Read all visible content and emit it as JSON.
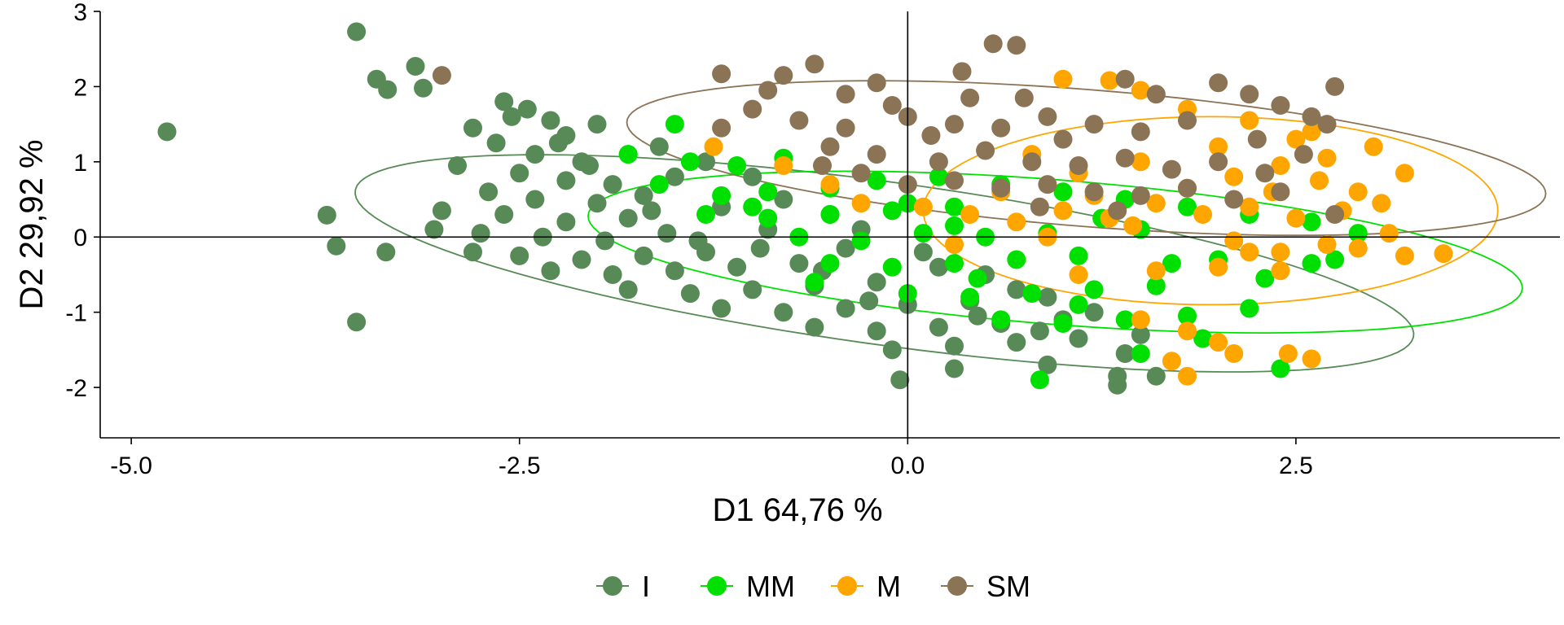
{
  "chart_data": {
    "type": "scatter",
    "xlabel": "D1 64,76 %",
    "ylabel": "D2 29,92 %",
    "xlim": [
      -5.2,
      4.2
    ],
    "ylim": [
      -2.67,
      3.0
    ],
    "x_ticks": [
      -5.0,
      -2.5,
      0.0,
      2.5
    ],
    "x_tick_labels": [
      "-5.0",
      "-2.5",
      "0.0",
      "2.5"
    ],
    "y_ticks": [
      -2,
      -1,
      0,
      1,
      2,
      3
    ],
    "y_tick_labels": [
      "-2",
      "-1",
      "0",
      "1",
      "2",
      "3"
    ],
    "reference_lines": {
      "x": 0,
      "y": 0
    },
    "grid": false,
    "legend_position": "bottom",
    "series": [
      {
        "name": "I",
        "color": "#578A57",
        "ellipse": {
          "cx": -0.15,
          "cy": -0.35,
          "rx": 3.55,
          "ry": 1.05,
          "angle_deg": -17
        },
        "points": [
          [
            -4.77,
            1.4
          ],
          [
            -3.55,
            2.73
          ],
          [
            -3.42,
            2.1
          ],
          [
            -3.35,
            1.96
          ],
          [
            -3.17,
            2.27
          ],
          [
            -3.12,
            1.98
          ],
          [
            -3.74,
            0.29
          ],
          [
            -3.68,
            -0.12
          ],
          [
            -3.36,
            -0.2
          ],
          [
            -3.55,
            -1.13
          ],
          [
            -2.6,
            1.8
          ],
          [
            -2.45,
            1.7
          ],
          [
            -2.3,
            1.55
          ],
          [
            -2.8,
            1.45
          ],
          [
            -2.2,
            1.35
          ],
          [
            -2.65,
            1.25
          ],
          [
            -2.4,
            1.1
          ],
          [
            -2.1,
            1.0
          ],
          [
            -2.9,
            0.95
          ],
          [
            -2.5,
            0.85
          ],
          [
            -2.2,
            0.75
          ],
          [
            -1.9,
            0.7
          ],
          [
            -2.7,
            0.6
          ],
          [
            -2.4,
            0.5
          ],
          [
            -2.0,
            0.45
          ],
          [
            -1.7,
            0.55
          ],
          [
            -3.0,
            0.35
          ],
          [
            -2.6,
            0.3
          ],
          [
            -2.2,
            0.2
          ],
          [
            -1.8,
            0.25
          ],
          [
            -3.05,
            0.1
          ],
          [
            -2.75,
            0.05
          ],
          [
            -2.35,
            0.0
          ],
          [
            -1.95,
            -0.05
          ],
          [
            -1.55,
            0.05
          ],
          [
            -2.8,
            -0.2
          ],
          [
            -2.5,
            -0.25
          ],
          [
            -2.1,
            -0.3
          ],
          [
            -1.7,
            -0.25
          ],
          [
            -1.3,
            -0.2
          ],
          [
            -2.3,
            -0.45
          ],
          [
            -1.9,
            -0.5
          ],
          [
            -1.5,
            -0.45
          ],
          [
            -1.1,
            -0.4
          ],
          [
            -0.7,
            -0.35
          ],
          [
            -1.8,
            -0.7
          ],
          [
            -1.4,
            -0.75
          ],
          [
            -1.0,
            -0.7
          ],
          [
            -0.6,
            -0.65
          ],
          [
            -0.2,
            -0.6
          ],
          [
            -1.2,
            -0.95
          ],
          [
            -0.8,
            -1.0
          ],
          [
            -0.4,
            -0.95
          ],
          [
            0.0,
            -0.9
          ],
          [
            0.4,
            -0.85
          ],
          [
            -0.6,
            -1.2
          ],
          [
            -0.2,
            -1.25
          ],
          [
            0.2,
            -1.2
          ],
          [
            0.6,
            -1.15
          ],
          [
            1.0,
            -1.1
          ],
          [
            -0.1,
            -1.5
          ],
          [
            0.3,
            -1.45
          ],
          [
            0.7,
            -1.4
          ],
          [
            1.1,
            -1.35
          ],
          [
            1.5,
            -1.3
          ],
          [
            -0.05,
            -1.9
          ],
          [
            0.3,
            -1.75
          ],
          [
            0.9,
            -1.7
          ],
          [
            1.35,
            -1.85
          ],
          [
            1.6,
            -1.85
          ],
          [
            1.35,
            -1.97
          ],
          [
            -1.6,
            1.2
          ],
          [
            -1.3,
            1.0
          ],
          [
            -1.0,
            0.8
          ],
          [
            -0.8,
            0.5
          ],
          [
            -0.5,
            0.3
          ],
          [
            -0.3,
            0.1
          ],
          [
            0.1,
            -0.2
          ],
          [
            0.5,
            -0.5
          ],
          [
            0.9,
            -0.8
          ],
          [
            -2.0,
            1.5
          ],
          [
            -1.8,
            1.1
          ],
          [
            -1.5,
            0.8
          ],
          [
            -1.2,
            0.4
          ],
          [
            -0.9,
            0.1
          ],
          [
            -0.4,
            -0.15
          ],
          [
            0.2,
            -0.4
          ],
          [
            0.7,
            -0.7
          ],
          [
            1.2,
            -1.0
          ],
          [
            1.4,
            -1.55
          ],
          [
            -2.55,
            1.6
          ],
          [
            -2.25,
            1.25
          ],
          [
            -2.05,
            0.95
          ],
          [
            -1.65,
            0.35
          ],
          [
            -1.35,
            -0.05
          ],
          [
            -0.95,
            -0.15
          ],
          [
            -0.55,
            -0.45
          ],
          [
            -0.25,
            -0.85
          ],
          [
            0.45,
            -1.05
          ],
          [
            0.85,
            -1.25
          ]
        ]
      },
      {
        "name": "MM",
        "color": "#00E000",
        "ellipse": {
          "cx": 0.95,
          "cy": -0.2,
          "rx": 3.05,
          "ry": 0.95,
          "angle_deg": -10
        },
        "points": [
          [
            -1.5,
            1.5
          ],
          [
            -1.8,
            1.1
          ],
          [
            -1.4,
            1.0
          ],
          [
            -1.1,
            0.95
          ],
          [
            -0.8,
            1.05
          ],
          [
            -1.6,
            0.7
          ],
          [
            -1.2,
            0.55
          ],
          [
            -0.9,
            0.6
          ],
          [
            -0.5,
            0.65
          ],
          [
            -0.2,
            0.75
          ],
          [
            -1.3,
            0.3
          ],
          [
            -0.9,
            0.25
          ],
          [
            -0.5,
            0.3
          ],
          [
            -0.1,
            0.35
          ],
          [
            0.3,
            0.4
          ],
          [
            -0.7,
            0.0
          ],
          [
            -0.3,
            -0.05
          ],
          [
            0.1,
            0.05
          ],
          [
            0.5,
            0.0
          ],
          [
            0.9,
            0.05
          ],
          [
            -0.5,
            -0.35
          ],
          [
            -0.1,
            -0.4
          ],
          [
            0.3,
            -0.35
          ],
          [
            0.7,
            -0.3
          ],
          [
            1.1,
            -0.25
          ],
          [
            0.0,
            -0.75
          ],
          [
            0.4,
            -0.8
          ],
          [
            0.8,
            -0.75
          ],
          [
            1.2,
            -0.7
          ],
          [
            1.6,
            -0.65
          ],
          [
            0.6,
            -1.1
          ],
          [
            1.0,
            -1.15
          ],
          [
            1.4,
            -1.1
          ],
          [
            1.8,
            -1.05
          ],
          [
            2.2,
            -0.95
          ],
          [
            0.85,
            -1.9
          ],
          [
            1.5,
            -1.55
          ],
          [
            2.4,
            -1.75
          ],
          [
            1.9,
            -1.35
          ],
          [
            2.6,
            -0.35
          ],
          [
            0.2,
            0.8
          ],
          [
            0.6,
            0.7
          ],
          [
            1.0,
            0.6
          ],
          [
            1.4,
            0.5
          ],
          [
            1.8,
            0.4
          ],
          [
            2.2,
            0.3
          ],
          [
            2.6,
            0.2
          ],
          [
            2.9,
            0.05
          ],
          [
            2.0,
            -0.3
          ],
          [
            1.5,
            0.1
          ],
          [
            -1.0,
            0.4
          ],
          [
            -0.6,
            -0.6
          ],
          [
            0.0,
            0.45
          ],
          [
            0.45,
            -0.55
          ],
          [
            1.25,
            0.25
          ],
          [
            1.7,
            -0.35
          ],
          [
            2.3,
            -0.55
          ],
          [
            2.75,
            -0.3
          ],
          [
            1.1,
            -0.9
          ],
          [
            0.3,
            0.15
          ]
        ]
      },
      {
        "name": "M",
        "color": "#FFA500",
        "ellipse": {
          "cx": 1.95,
          "cy": 0.35,
          "rx": 1.85,
          "ry": 1.25,
          "angle_deg": 0
        },
        "points": [
          [
            -1.25,
            1.2
          ],
          [
            -0.8,
            0.95
          ],
          [
            -0.5,
            0.7
          ],
          [
            -0.3,
            0.45
          ],
          [
            0.1,
            0.4
          ],
          [
            0.4,
            0.3
          ],
          [
            0.7,
            0.2
          ],
          [
            1.0,
            0.35
          ],
          [
            1.3,
            0.25
          ],
          [
            1.6,
            0.45
          ],
          [
            1.9,
            0.3
          ],
          [
            2.2,
            0.4
          ],
          [
            2.5,
            0.25
          ],
          [
            2.8,
            0.35
          ],
          [
            3.1,
            0.05
          ],
          [
            3.45,
            -0.22
          ],
          [
            3.2,
            -0.25
          ],
          [
            2.7,
            -0.1
          ],
          [
            2.4,
            -0.2
          ],
          [
            2.1,
            -0.05
          ],
          [
            1.8,
            0.65
          ],
          [
            2.1,
            0.8
          ],
          [
            2.4,
            0.95
          ],
          [
            2.7,
            1.05
          ],
          [
            3.0,
            1.2
          ],
          [
            2.5,
            1.3
          ],
          [
            2.0,
            1.2
          ],
          [
            1.5,
            1.0
          ],
          [
            1.1,
            0.85
          ],
          [
            0.8,
            1.1
          ],
          [
            1.0,
            2.1
          ],
          [
            1.3,
            2.08
          ],
          [
            1.5,
            1.95
          ],
          [
            1.8,
            1.7
          ],
          [
            2.2,
            1.55
          ],
          [
            2.6,
            1.4
          ],
          [
            1.6,
            -0.45
          ],
          [
            2.0,
            -0.4
          ],
          [
            2.4,
            -0.45
          ],
          [
            1.5,
            -1.1
          ],
          [
            1.8,
            -1.25
          ],
          [
            2.0,
            -1.4
          ],
          [
            2.1,
            -1.55
          ],
          [
            2.45,
            -1.55
          ],
          [
            2.6,
            -1.62
          ],
          [
            1.7,
            -1.65
          ],
          [
            1.8,
            -1.85
          ],
          [
            2.2,
            -0.2
          ],
          [
            2.9,
            0.6
          ],
          [
            3.2,
            0.85
          ],
          [
            0.3,
            -0.1
          ],
          [
            0.6,
            0.6
          ],
          [
            1.2,
            0.55
          ],
          [
            1.45,
            0.15
          ],
          [
            2.35,
            0.6
          ],
          [
            2.65,
            0.75
          ],
          [
            3.05,
            0.45
          ],
          [
            2.9,
            -0.15
          ],
          [
            1.1,
            -0.5
          ],
          [
            0.9,
            0.0
          ]
        ]
      },
      {
        "name": "SM",
        "color": "#8B7355",
        "ellipse": {
          "cx": 1.15,
          "cy": 1.05,
          "rx": 3.0,
          "ry": 0.9,
          "angle_deg": -10
        },
        "points": [
          [
            -3.0,
            2.15
          ],
          [
            -1.2,
            2.17
          ],
          [
            -0.8,
            2.15
          ],
          [
            -0.6,
            2.3
          ],
          [
            -0.4,
            1.9
          ],
          [
            -0.1,
            1.75
          ],
          [
            0.35,
            2.2
          ],
          [
            0.55,
            2.57
          ],
          [
            0.7,
            2.55
          ],
          [
            1.4,
            2.1
          ],
          [
            -1.0,
            1.7
          ],
          [
            -0.7,
            1.55
          ],
          [
            -0.4,
            1.45
          ],
          [
            0.0,
            1.6
          ],
          [
            0.3,
            1.5
          ],
          [
            0.6,
            1.45
          ],
          [
            0.9,
            1.6
          ],
          [
            1.2,
            1.5
          ],
          [
            1.5,
            1.4
          ],
          [
            1.8,
            1.55
          ],
          [
            -0.5,
            1.2
          ],
          [
            -0.2,
            1.1
          ],
          [
            0.2,
            1.0
          ],
          [
            0.5,
            1.15
          ],
          [
            0.8,
            1.0
          ],
          [
            1.1,
            0.95
          ],
          [
            1.4,
            1.05
          ],
          [
            1.7,
            0.9
          ],
          [
            2.0,
            1.0
          ],
          [
            2.3,
            0.85
          ],
          [
            0.0,
            0.7
          ],
          [
            0.3,
            0.75
          ],
          [
            0.6,
            0.65
          ],
          [
            0.9,
            0.7
          ],
          [
            1.2,
            0.6
          ],
          [
            1.5,
            0.55
          ],
          [
            1.8,
            0.65
          ],
          [
            2.1,
            0.5
          ],
          [
            2.4,
            0.6
          ],
          [
            2.75,
            0.3
          ],
          [
            2.0,
            2.05
          ],
          [
            2.2,
            1.9
          ],
          [
            2.4,
            1.75
          ],
          [
            2.6,
            1.6
          ],
          [
            2.75,
            2.0
          ],
          [
            2.7,
            1.5
          ],
          [
            1.0,
            1.3
          ],
          [
            0.4,
            1.85
          ],
          [
            -0.2,
            2.05
          ],
          [
            -0.9,
            1.95
          ],
          [
            -1.2,
            1.45
          ],
          [
            -0.3,
            0.85
          ],
          [
            0.75,
            1.85
          ],
          [
            1.6,
            1.9
          ],
          [
            2.25,
            1.3
          ],
          [
            2.55,
            1.1
          ],
          [
            1.35,
            0.35
          ],
          [
            0.85,
            0.4
          ],
          [
            -0.55,
            0.95
          ],
          [
            0.15,
            1.35
          ]
        ]
      }
    ]
  }
}
